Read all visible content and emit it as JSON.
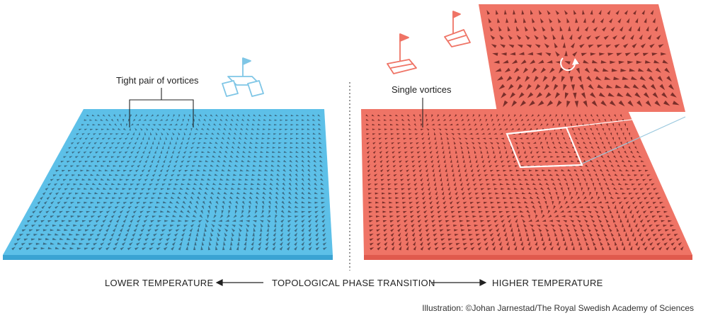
{
  "labels": {
    "tight_pair": "Tight pair of vortices",
    "single": "Single vortices",
    "lower": "LOWER TEMPERATURE",
    "transition": "TOPOLOGICAL PHASE TRANSITION",
    "higher": "HIGHER TEMPERATURE",
    "credit": "Illustration: ©Johan Jarnestad/The Royal Swedish Academy of Sciences"
  },
  "colors": {
    "blue_top": "#5dc0e8",
    "blue_side": "#3aa3d3",
    "blue_arrow": "#3c6c85",
    "red_top": "#ef7466",
    "red_side": "#e05a4d",
    "red_arrow": "#7a2f2a",
    "outline_white": "#ffffff",
    "boat_blue": "#7fc6e6",
    "boat_red": "#ef7466"
  },
  "icons": [
    "catamaran-icon",
    "sailboat-icon",
    "rotation-arrow-icon"
  ]
}
